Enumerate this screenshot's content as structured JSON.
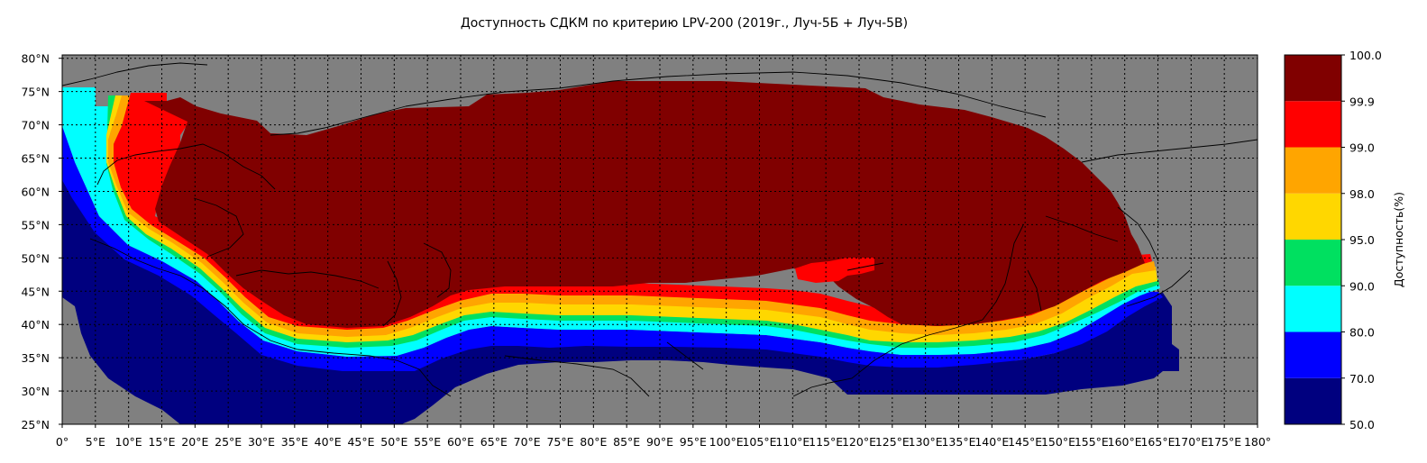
{
  "title": "Доступность СДКМ по критерию LPV-200 (2019г., Луч-5Б + Луч-5В)",
  "map": {
    "lon_range": [
      0,
      180
    ],
    "lat_range": [
      25,
      80
    ],
    "grid": true,
    "x_tick_labels": [
      "0°",
      "5°E",
      "10°E",
      "15°E",
      "20°E",
      "25°E",
      "30°E",
      "35°E",
      "40°E",
      "45°E",
      "50°E",
      "55°E",
      "60°E",
      "65°E",
      "70°E",
      "75°E",
      "80°E",
      "85°E",
      "90°E",
      "95°E",
      "100°E",
      "105°E",
      "110°E",
      "115°E",
      "120°E",
      "125°E",
      "130°E",
      "135°E",
      "140°E",
      "145°E",
      "150°E",
      "155°E",
      "160°E",
      "165°E",
      "170°E",
      "175°E",
      "180°"
    ],
    "y_tick_labels": [
      "80°N",
      "75°N",
      "70°N",
      "65°N",
      "60°N",
      "55°N",
      "50°N",
      "45°N",
      "40°N",
      "35°N",
      "30°N",
      "25°N"
    ],
    "nodata_color": "#808080"
  },
  "colorbar": {
    "label": "Доступность(%)",
    "tick_labels": [
      "50.0",
      "70.0",
      "80.0",
      "90.0",
      "95.0",
      "98.0",
      "99.0",
      "99.9",
      "100.0"
    ],
    "colors": [
      "#00007f",
      "#0000ff",
      "#00ffff",
      "#00e060",
      "#ffd700",
      "#ffa500",
      "#ff0000",
      "#800000"
    ]
  }
}
